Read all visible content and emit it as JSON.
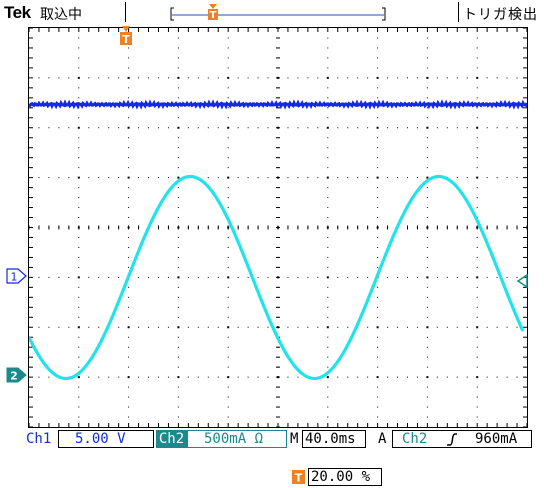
{
  "header": {
    "brand": "Tek",
    "acq_status": "取込中",
    "trigger_status": "トリガ検出"
  },
  "markers": {
    "trigger_marker": "T",
    "ch1_marker": "1",
    "ch2_marker": "2"
  },
  "readout": {
    "ch1_label": "Ch1",
    "ch1_scale": "5.00 V",
    "ch2_label": "Ch2",
    "ch2_scale": "500mA Ω",
    "timebase_label": "M",
    "timebase": "40.0ms",
    "trigger_mode": "A",
    "trigger_source": "Ch2",
    "trigger_slope_icon": "rising-edge-icon",
    "trigger_level": "960mA",
    "trigger_position_label": "T",
    "trigger_position": "20.00 %"
  },
  "colors": {
    "ch1": "#1428e6",
    "ch2": "#22e2ec",
    "ch2_tag": "#1a8a8c",
    "trigger": "#f08020",
    "grid": "#000000"
  }
}
